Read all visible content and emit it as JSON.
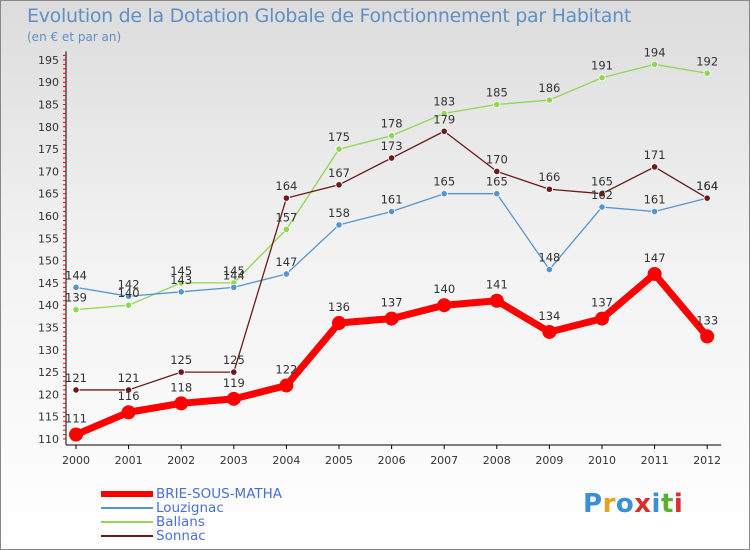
{
  "colors": {
    "title": "#5e8fc7",
    "brie": "#ff0000",
    "louzignac": "#5596d2",
    "ballans": "#90d650",
    "sonnac": "#6b1a1a",
    "legend_text": "#4a6fd8"
  },
  "chart_data": {
    "type": "line",
    "title": "Evolution de la Dotation Globale de Fonctionnement par Habitant",
    "subtitle": "(en € et par an)",
    "xlabel": "",
    "ylabel": "",
    "ylim": [
      110,
      196
    ],
    "yticks": [
      110,
      115,
      120,
      125,
      130,
      135,
      140,
      145,
      150,
      155,
      160,
      165,
      170,
      175,
      180,
      185,
      190,
      195
    ],
    "categories": [
      "2000",
      "2001",
      "2002",
      "2003",
      "2004",
      "2005",
      "2006",
      "2007",
      "2008",
      "2009",
      "2010",
      "2011",
      "2012"
    ],
    "series": [
      {
        "name": "BRIE-SOUS-MATHA",
        "color": "#ff0000",
        "values": [
          111,
          116,
          118,
          119,
          122,
          136,
          137,
          140,
          141,
          134,
          137,
          147,
          133
        ]
      },
      {
        "name": "Louzignac",
        "color": "#5596d2",
        "values": [
          144,
          142,
          143,
          144,
          147,
          158,
          161,
          165,
          165,
          148,
          162,
          161,
          164
        ]
      },
      {
        "name": "Ballans",
        "color": "#90d650",
        "values": [
          139,
          140,
          145,
          145,
          157,
          175,
          178,
          183,
          185,
          186,
          191,
          194,
          192
        ]
      },
      {
        "name": "Sonnac",
        "color": "#6b1a1a",
        "values": [
          121,
          121,
          125,
          125,
          164,
          167,
          173,
          179,
          170,
          166,
          165,
          171,
          164
        ]
      }
    ],
    "legend_position": "bottom-left",
    "grid": false
  },
  "logo": {
    "text": "Proxiti",
    "letters": [
      "P",
      "r",
      "o",
      "x",
      "i",
      "t",
      "i"
    ],
    "letter_colors": [
      "#3a8fd8",
      "#e8a020",
      "#3a8fd8",
      "#d83030",
      "#3a8fd8",
      "#5cb030",
      "#d83030"
    ]
  }
}
